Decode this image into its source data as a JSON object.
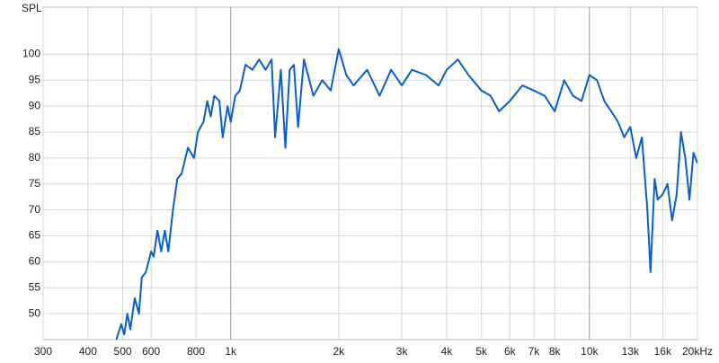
{
  "chart_data": {
    "type": "line",
    "y_label": "SPL",
    "log_x": true,
    "grid": true,
    "xlim": [
      300,
      20000
    ],
    "ylim": [
      45,
      107
    ],
    "xticks": [
      300,
      400,
      500,
      600,
      800,
      {
        "value": 1000,
        "label": "1k"
      },
      {
        "value": 2000,
        "label": "2k"
      },
      {
        "value": 3000,
        "label": "3k"
      },
      {
        "value": 4000,
        "label": "4k"
      },
      {
        "value": 5000,
        "label": "5k"
      },
      {
        "value": 6000,
        "label": "6k"
      },
      {
        "value": 7000,
        "label": "7k"
      },
      {
        "value": 8000,
        "label": "8k"
      },
      {
        "value": 10000,
        "label": "10k"
      },
      {
        "value": 13000,
        "label": "13k"
      },
      {
        "value": 16000,
        "label": "16k"
      },
      {
        "value": 20000,
        "label": "20kHz"
      }
    ],
    "yticks": [
      50,
      55,
      60,
      65,
      70,
      75,
      80,
      85,
      90,
      95,
      100
    ],
    "x": [
      480,
      495,
      505,
      515,
      525,
      540,
      555,
      565,
      580,
      600,
      610,
      625,
      640,
      655,
      670,
      690,
      710,
      730,
      760,
      790,
      810,
      840,
      860,
      880,
      900,
      930,
      950,
      980,
      1000,
      1030,
      1060,
      1100,
      1150,
      1200,
      1250,
      1300,
      1330,
      1380,
      1420,
      1460,
      1500,
      1540,
      1600,
      1700,
      1800,
      1900,
      2000,
      2100,
      2200,
      2400,
      2600,
      2800,
      3000,
      3200,
      3500,
      3800,
      4000,
      4300,
      4600,
      5000,
      5300,
      5600,
      6000,
      6500,
      7000,
      7500,
      8000,
      8500,
      9000,
      9500,
      10000,
      10500,
      11000,
      11500,
      12000,
      12500,
      13000,
      13500,
      14000,
      14500,
      14800,
      15200,
      15500,
      16000,
      16500,
      17000,
      17500,
      18000,
      18500,
      19000,
      19500,
      20000
    ],
    "series": [
      {
        "name": "SPL",
        "color": "#0a5fc8",
        "values": [
          45,
          48,
          46,
          50,
          47,
          53,
          50,
          57,
          58,
          62,
          61,
          66,
          62,
          66,
          62,
          70,
          76,
          77,
          82,
          80,
          85,
          87,
          91,
          88,
          92,
          91,
          84,
          90,
          87,
          92,
          93,
          98,
          97,
          99,
          97,
          99,
          84,
          97,
          82,
          97,
          98,
          86,
          99,
          92,
          95,
          93,
          101,
          96,
          94,
          97,
          92,
          97,
          94,
          97,
          96,
          94,
          97,
          99,
          96,
          93,
          92,
          89,
          91,
          94,
          93,
          92,
          89,
          95,
          92,
          91,
          96,
          95,
          91,
          89,
          87,
          84,
          86,
          80,
          84,
          70,
          58,
          76,
          72,
          73,
          75,
          68,
          73,
          85,
          80,
          72,
          81,
          79
        ]
      }
    ]
  }
}
